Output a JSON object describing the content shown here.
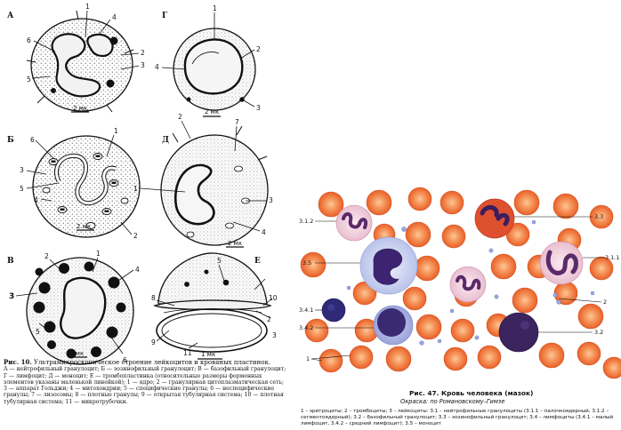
{
  "left_figure": {
    "panels": [
      "А",
      "Б",
      "В",
      "Г",
      "Д",
      "Е"
    ],
    "scale_label": "2 мк",
    "scale_label_e": "1 мк",
    "labels_a": [
      "1",
      "2",
      "3",
      "4",
      "5",
      "6"
    ],
    "labels_g": [
      "1",
      "2",
      "3",
      "4"
    ],
    "labels_b": [
      "1",
      "2",
      "3",
      "4",
      "5",
      "6"
    ],
    "labels_d": [
      "1",
      "2",
      "3",
      "4",
      "7"
    ],
    "labels_v": [
      "1",
      "2",
      "3",
      "4",
      "5",
      "6"
    ],
    "labels_e": [
      "2",
      "3",
      "5",
      "8",
      "9",
      "10",
      "11"
    ],
    "caption_title_bold": "Рис. 10.",
    "caption_title": " Ультрамикроскопическое строение лейкоцитов и кровяных пластинок.",
    "caption_body": "А — нейтрофильный гранулоцит; Б — эозинофильный гранулоцит; В — базофильный гранулоцит; Г — лимфоцит; Д — моноцит; Е — тромбопластинка (относительные размеры форменных элементов указаны маленькой линейкой); 1 — ядро; 2 — гранулярная цитоплазматическая сеть; 3 — аппарат Гольджи; 4 — митохондрии; 5 — специфические гранулы; 6 — неспецифические гранулы; 7 — лизосомы; 8 — плотные гранулы; 9 — открытая тубулярная система; 10 — плотная тубулярная система; 11 — микротрубочки."
  },
  "right_figure": {
    "labels": [
      "3.1.2",
      "3.3",
      "3.5",
      "3.1.1",
      "2",
      "3.4.1",
      "3.4.2",
      "3.2",
      "1"
    ],
    "caption_title": "Рис. 47. Кровь человека (мазок)",
    "caption_subtitle": "Окраска: по Романовскому–Гимзе",
    "caption_body": "1 – эритроциты; 2 – тромбоциты; 3 – лейкоциты: 3.1 – нейтрофильные гранулоциты (3.1.1 – палочкоядерный, 3.1.2 – сегментоядерный); 3.2 – базофильный гранулоцит; 3.3 – эозинофильный гранулоцит; 3.4 – лимфоциты (3.4.1 – малый лимфоцит, 3.4.2 – средний лимфоцит); 3.5 – моноцит"
  },
  "colors": {
    "erythrocyte": "#f07a3a",
    "erythrocyte_center": "#fbb88a",
    "eosinophil_granule": "#e04a2e",
    "nucleus": "#4a2a7a",
    "monocyte_cytoplasm": "#d6dcf2",
    "basophil": "#3a2260"
  }
}
